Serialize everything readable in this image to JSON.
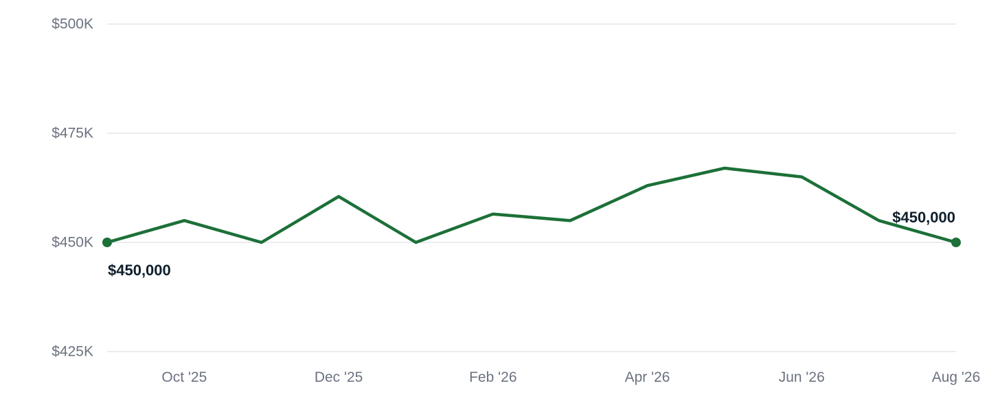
{
  "colors": {
    "line": "#1c7038",
    "grid": "#e3e6eb",
    "tick_text": "#6b7280",
    "label_text": "#0f1f2c"
  },
  "chart_data": {
    "type": "line",
    "title": "",
    "xlabel": "",
    "ylabel": "",
    "x": [
      "2025-09",
      "2025-10",
      "2025-11",
      "2025-12",
      "2026-01",
      "2026-02",
      "2026-03",
      "2026-04",
      "2026-05",
      "2026-06",
      "2026-07",
      "2026-08"
    ],
    "series": [
      {
        "values": [
          450000,
          455000,
          450000,
          460500,
          450000,
          456500,
          455000,
          463000,
          467000,
          465000,
          455000,
          450000
        ]
      }
    ],
    "ylim": [
      425000,
      500000
    ],
    "y_ticks": [
      {
        "value": 500000,
        "label": "$500K"
      },
      {
        "value": 475000,
        "label": "$475K"
      },
      {
        "value": 450000,
        "label": "$450K"
      },
      {
        "value": 425000,
        "label": "$425K"
      }
    ],
    "x_ticks": [
      {
        "x": "2025-10",
        "label": "Oct '25"
      },
      {
        "x": "2025-12",
        "label": "Dec '25"
      },
      {
        "x": "2026-02",
        "label": "Feb '26"
      },
      {
        "x": "2026-04",
        "label": "Apr '26"
      },
      {
        "x": "2026-06",
        "label": "Jun '26"
      },
      {
        "x": "2026-08",
        "label": "Aug '26"
      }
    ],
    "grid": true,
    "annotations": [
      {
        "x": "2025-09",
        "text": "$450,000"
      },
      {
        "x": "2026-08",
        "text": "$450,000"
      }
    ]
  }
}
